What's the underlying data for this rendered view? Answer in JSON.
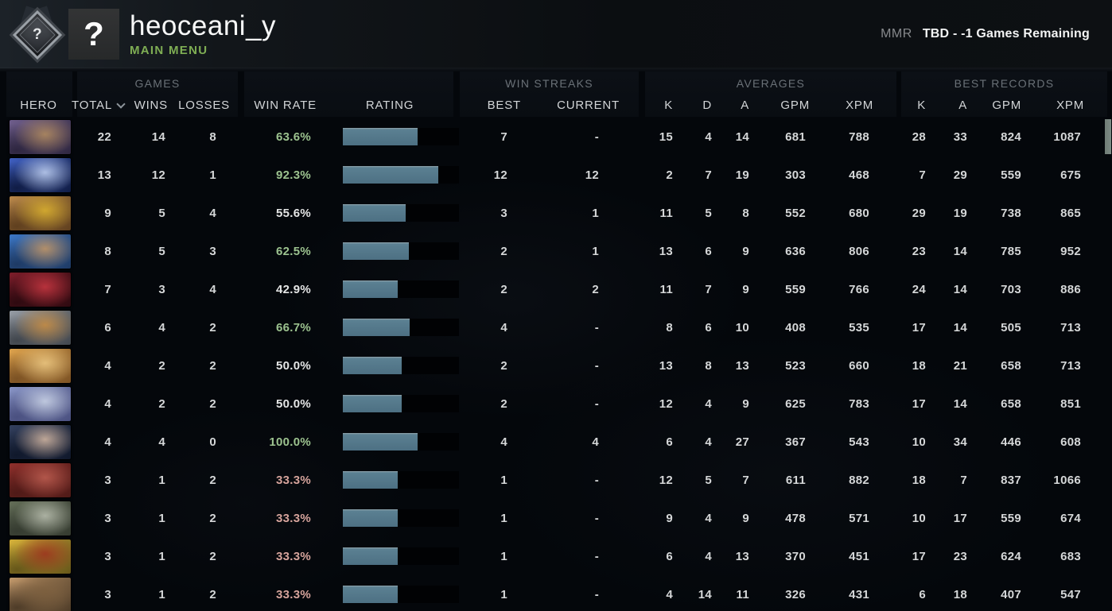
{
  "header": {
    "player_name": "heoceani_y",
    "subtitle": "MAIN MENU",
    "avatar_glyph": "?",
    "medal_glyph": "?",
    "mmr_label": "MMR",
    "mmr_value": "TBD - -1 Games Remaining"
  },
  "colors": {
    "subtitle_green": "#7fae54",
    "win_rate_good": "#9cc28f",
    "win_rate_neutral": "#e4e5e5",
    "win_rate_bad": "#d6a49c",
    "rating_bar_fill": "#4d7083",
    "rating_bar_track": "#010204",
    "scroll_thumb": "#7d8b84"
  },
  "table": {
    "groups": {
      "games": "GAMES",
      "streaks": "WIN STREAKS",
      "averages": "AVERAGES",
      "records": "BEST RECORDS"
    },
    "columns": {
      "hero": "HERO",
      "total": "TOTAL",
      "wins": "WINS",
      "losses": "LOSSES",
      "win_rate": "WIN RATE",
      "rating": "RATING",
      "best": "BEST",
      "current": "CURRENT",
      "k": "K",
      "d": "D",
      "a": "A",
      "gpm": "GPM",
      "xpm": "XPM"
    },
    "sorted_by": "TOTAL",
    "rows": [
      {
        "total": 22,
        "wins": 14,
        "losses": 8,
        "win_rate": "63.6%",
        "tone": "good",
        "rating_fill": 0.646,
        "streak_best": "7",
        "streak_current": "-",
        "avg_k": 15,
        "avg_d": 4,
        "avg_a": 14,
        "avg_gpm": 681,
        "avg_xpm": 788,
        "best_k": 28,
        "best_a": 33,
        "best_gpm": 824,
        "best_xpm": 1087,
        "portrait": [
          "#6f5e8c",
          "#bd9460",
          "#2e2640"
        ]
      },
      {
        "total": 13,
        "wins": 12,
        "losses": 1,
        "win_rate": "92.3%",
        "tone": "good",
        "rating_fill": 0.825,
        "streak_best": "12",
        "streak_current": "12",
        "avg_k": 2,
        "avg_d": 7,
        "avg_a": 19,
        "avg_gpm": 303,
        "avg_xpm": 468,
        "best_k": 7,
        "best_a": 29,
        "best_gpm": 559,
        "best_xpm": 675,
        "portrait": [
          "#3f5fc0",
          "#cfe0ff",
          "#101c45"
        ]
      },
      {
        "total": 9,
        "wins": 5,
        "losses": 4,
        "win_rate": "55.6%",
        "tone": "neutral",
        "rating_fill": 0.538,
        "streak_best": "3",
        "streak_current": "1",
        "avg_k": 11,
        "avg_d": 5,
        "avg_a": 8,
        "avg_gpm": 552,
        "avg_xpm": 680,
        "best_k": 29,
        "best_a": 19,
        "best_gpm": 738,
        "best_xpm": 865,
        "portrait": [
          "#b8874a",
          "#e3b92f",
          "#5f3f1e"
        ]
      },
      {
        "total": 8,
        "wins": 5,
        "losses": 3,
        "win_rate": "62.5%",
        "tone": "good",
        "rating_fill": 0.57,
        "streak_best": "2",
        "streak_current": "1",
        "avg_k": 13,
        "avg_d": 6,
        "avg_a": 9,
        "avg_gpm": 636,
        "avg_xpm": 806,
        "best_k": 23,
        "best_a": 14,
        "best_gpm": 785,
        "best_xpm": 952,
        "portrait": [
          "#3c76c4",
          "#d49e62",
          "#1e3a64"
        ]
      },
      {
        "total": 7,
        "wins": 3,
        "losses": 4,
        "win_rate": "42.9%",
        "tone": "neutral",
        "rating_fill": 0.471,
        "streak_best": "2",
        "streak_current": "2",
        "avg_k": 11,
        "avg_d": 7,
        "avg_a": 9,
        "avg_gpm": 559,
        "avg_xpm": 766,
        "best_k": 24,
        "best_a": 14,
        "best_gpm": 703,
        "best_xpm": 886,
        "portrait": [
          "#7c1d2a",
          "#d13a44",
          "#2e0a10"
        ]
      },
      {
        "total": 6,
        "wins": 4,
        "losses": 2,
        "win_rate": "66.7%",
        "tone": "good",
        "rating_fill": 0.574,
        "streak_best": "4",
        "streak_current": "-",
        "avg_k": 8,
        "avg_d": 6,
        "avg_a": 10,
        "avg_gpm": 408,
        "avg_xpm": 535,
        "best_k": 17,
        "best_a": 14,
        "best_gpm": 505,
        "best_xpm": 713,
        "portrait": [
          "#969ca4",
          "#d2913f",
          "#41464d"
        ]
      },
      {
        "total": 4,
        "wins": 2,
        "losses": 2,
        "win_rate": "50.0%",
        "tone": "neutral",
        "rating_fill": 0.505,
        "streak_best": "2",
        "streak_current": "-",
        "avg_k": 13,
        "avg_d": 8,
        "avg_a": 13,
        "avg_gpm": 523,
        "avg_xpm": 660,
        "best_k": 18,
        "best_a": 21,
        "best_gpm": 658,
        "best_xpm": 713,
        "portrait": [
          "#dda24c",
          "#f3d08a",
          "#7c5224"
        ]
      },
      {
        "total": 4,
        "wins": 2,
        "losses": 2,
        "win_rate": "50.0%",
        "tone": "neutral",
        "rating_fill": 0.505,
        "streak_best": "2",
        "streak_current": "-",
        "avg_k": 12,
        "avg_d": 4,
        "avg_a": 9,
        "avg_gpm": 625,
        "avg_xpm": 783,
        "best_k": 17,
        "best_a": 14,
        "best_gpm": 658,
        "best_xpm": 851,
        "portrait": [
          "#8793c4",
          "#d5deee",
          "#4a5080"
        ]
      },
      {
        "total": 4,
        "wins": 4,
        "losses": 0,
        "win_rate": "100.0%",
        "tone": "good",
        "rating_fill": 0.646,
        "streak_best": "4",
        "streak_current": "4",
        "avg_k": 6,
        "avg_d": 4,
        "avg_a": 27,
        "avg_gpm": 367,
        "avg_xpm": 543,
        "best_k": 10,
        "best_a": 34,
        "best_gpm": 446,
        "best_xpm": 608,
        "portrait": [
          "#33405e",
          "#e6c6ad",
          "#10182b"
        ]
      },
      {
        "total": 3,
        "wins": 1,
        "losses": 2,
        "win_rate": "33.3%",
        "tone": "bad",
        "rating_fill": 0.471,
        "streak_best": "1",
        "streak_current": "-",
        "avg_k": 12,
        "avg_d": 5,
        "avg_a": 7,
        "avg_gpm": 611,
        "avg_xpm": 882,
        "best_k": 18,
        "best_a": 7,
        "best_gpm": 837,
        "best_xpm": 1066,
        "portrait": [
          "#8e2f2b",
          "#c46355",
          "#4f1a17"
        ]
      },
      {
        "total": 3,
        "wins": 1,
        "losses": 2,
        "win_rate": "33.3%",
        "tone": "bad",
        "rating_fill": 0.476,
        "streak_best": "1",
        "streak_current": "-",
        "avg_k": 9,
        "avg_d": 4,
        "avg_a": 9,
        "avg_gpm": 478,
        "avg_xpm": 571,
        "best_k": 10,
        "best_a": 17,
        "best_gpm": 559,
        "best_xpm": 674,
        "portrait": [
          "#636d57",
          "#c4c9ba",
          "#353b30"
        ]
      },
      {
        "total": 3,
        "wins": 1,
        "losses": 2,
        "win_rate": "33.3%",
        "tone": "bad",
        "rating_fill": 0.471,
        "streak_best": "1",
        "streak_current": "-",
        "avg_k": 6,
        "avg_d": 4,
        "avg_a": 13,
        "avg_gpm": 370,
        "avg_xpm": 451,
        "best_k": 17,
        "best_a": 23,
        "best_gpm": 624,
        "best_xpm": 683,
        "portrait": [
          "#d5b139",
          "#9e2c1e",
          "#66571a"
        ]
      },
      {
        "total": 3,
        "wins": 1,
        "losses": 2,
        "win_rate": "33.3%",
        "tone": "bad",
        "rating_fill": 0.476,
        "streak_best": "1",
        "streak_current": "-",
        "avg_k": 4,
        "avg_d": 14,
        "avg_a": 11,
        "avg_gpm": 326,
        "avg_xpm": 431,
        "best_k": 6,
        "best_a": 18,
        "best_gpm": 407,
        "best_xpm": 547,
        "portrait": [
          "#c0976a",
          "#7c5f3e",
          "#4e3c28"
        ]
      }
    ]
  }
}
